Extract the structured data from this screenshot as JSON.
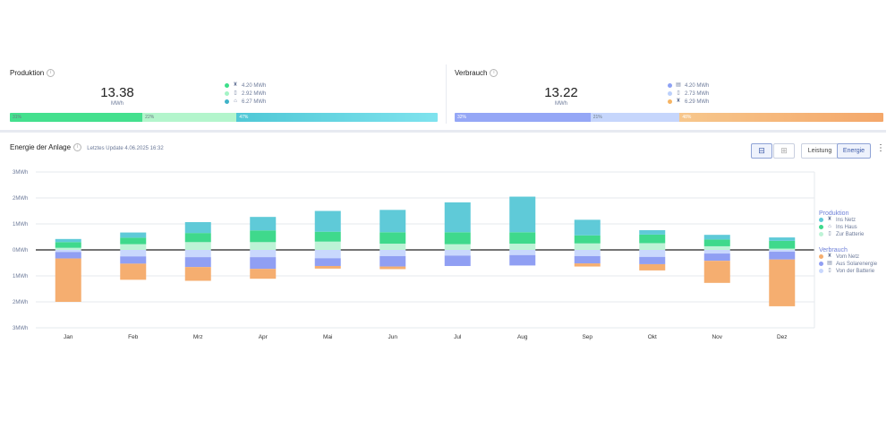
{
  "production": {
    "title": "Produktion",
    "total": "13.38",
    "unit": "MWh",
    "legend": [
      {
        "icon": "grid-tower-icon",
        "value": "4.20 MWh",
        "color": "#3ddf8a"
      },
      {
        "icon": "battery-icon",
        "value": "2.92 MWh",
        "color": "#a4f4c6"
      },
      {
        "icon": "house-icon",
        "value": "6.27 MWh",
        "color": "#3fb3c8"
      }
    ],
    "bar": [
      {
        "pct": 31,
        "label": "31%",
        "color": "#44e08e",
        "dark": true
      },
      {
        "pct": 22,
        "label": "22%",
        "color": "#b3f5cc",
        "dark": true
      },
      {
        "pct": 47,
        "label": "47%",
        "color": "#4fc8d6",
        "dark": false,
        "color2": "#7fe3ee"
      }
    ]
  },
  "consumption": {
    "title": "Verbrauch",
    "total": "13.22",
    "unit": "MWh",
    "legend": [
      {
        "icon": "solar-panel-icon",
        "value": "4.20 MWh",
        "color": "#8ea2f4"
      },
      {
        "icon": "battery-icon",
        "value": "2.73 MWh",
        "color": "#bcd0fb"
      },
      {
        "icon": "grid-tower-icon",
        "value": "6.29 MWh",
        "color": "#f6b463"
      }
    ],
    "bar": [
      {
        "pct": 32,
        "label": "32%",
        "color": "#95a7f6",
        "dark": false
      },
      {
        "pct": 21,
        "label": "21%",
        "color": "#c6d6fc",
        "dark": true
      },
      {
        "pct": 48,
        "label": "48%",
        "color": "#f7c78c",
        "dark": false,
        "color2": "#f4a76a"
      }
    ]
  },
  "section": {
    "title": "Energie der Anlage",
    "last_update": "Letztes Update 4.06.2025 16:32"
  },
  "toolbar": {
    "power_label": "Leistung",
    "energy_label": "Energie"
  },
  "chart_data": {
    "type": "bar",
    "stacked": true,
    "categories": [
      "Jan",
      "Feb",
      "Mrz",
      "Apr",
      "Mai",
      "Jun",
      "Jul",
      "Aug",
      "Sep",
      "Okt",
      "Nov",
      "Dez"
    ],
    "yticks": [
      "3MWh",
      "2MWh",
      "1MWh",
      "0MWh",
      "1MWh",
      "2MWh",
      "3MWh"
    ],
    "ylim": [
      -3,
      3
    ],
    "grid": true,
    "legend_position": "right",
    "production_group": "Produktion",
    "consumption_group": "Verbrauch",
    "production_series": [
      {
        "name": "Zur Batterie",
        "color": "#bdf3d6",
        "values": [
          0.08,
          0.22,
          0.3,
          0.3,
          0.32,
          0.24,
          0.22,
          0.24,
          0.25,
          0.26,
          0.14,
          0.05
        ]
      },
      {
        "name": "Ins Haus",
        "color": "#3fd98c",
        "values": [
          0.22,
          0.25,
          0.35,
          0.45,
          0.38,
          0.44,
          0.46,
          0.44,
          0.31,
          0.33,
          0.26,
          0.3
        ]
      },
      {
        "name": "Ins Netz",
        "color": "#5fcad8",
        "values": [
          0.12,
          0.2,
          0.42,
          0.52,
          0.8,
          0.86,
          1.15,
          1.37,
          0.6,
          0.17,
          0.18,
          0.13
        ]
      }
    ],
    "consumption_series": [
      {
        "name": "Von der Batterie",
        "color": "#c9d8fd",
        "values": [
          0.08,
          0.25,
          0.28,
          0.28,
          0.32,
          0.24,
          0.22,
          0.2,
          0.24,
          0.27,
          0.14,
          0.07
        ]
      },
      {
        "name": "Aus Solarenergie",
        "color": "#909ff3",
        "values": [
          0.25,
          0.28,
          0.38,
          0.45,
          0.3,
          0.4,
          0.4,
          0.4,
          0.28,
          0.28,
          0.28,
          0.3
        ]
      },
      {
        "name": "Vom Netz",
        "color": "#f5ae70",
        "values": [
          1.67,
          0.62,
          0.53,
          0.38,
          0.1,
          0.1,
          0.0,
          0.0,
          0.12,
          0.24,
          0.85,
          1.8
        ]
      }
    ]
  }
}
